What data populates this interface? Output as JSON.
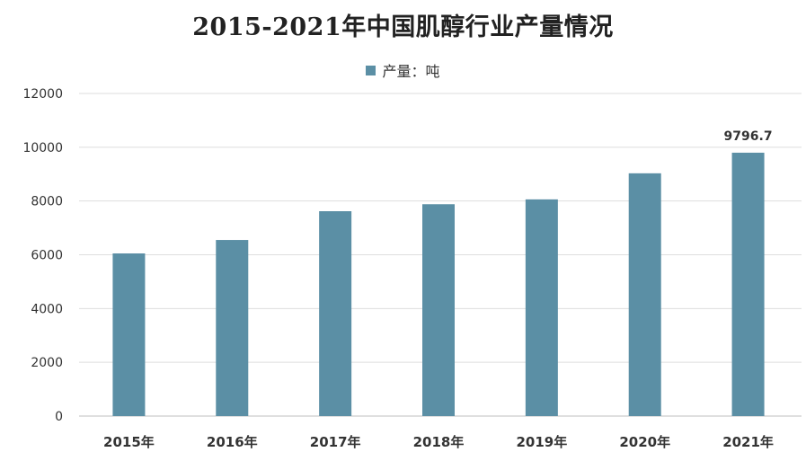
{
  "chart_data": {
    "type": "bar",
    "title": "2015-2021年中国肌醇行业产量情况",
    "categories": [
      "2015年",
      "2016年",
      "2017年",
      "2018年",
      "2019年",
      "2020年",
      "2021年"
    ],
    "series": [
      {
        "name": "产量：吨",
        "values": [
          6050,
          6550,
          7620,
          7880,
          8060,
          9030,
          9796.7
        ],
        "color": "#5b8fa5"
      }
    ],
    "data_labels": {
      "6": "9796.7"
    },
    "ylim": [
      0,
      12000
    ],
    "yticks": [
      "0",
      "2000",
      "4000",
      "6000",
      "8000",
      "10000",
      "12000"
    ],
    "xlabel": "",
    "ylabel": "",
    "grid": true,
    "legend_position": "top-center"
  }
}
